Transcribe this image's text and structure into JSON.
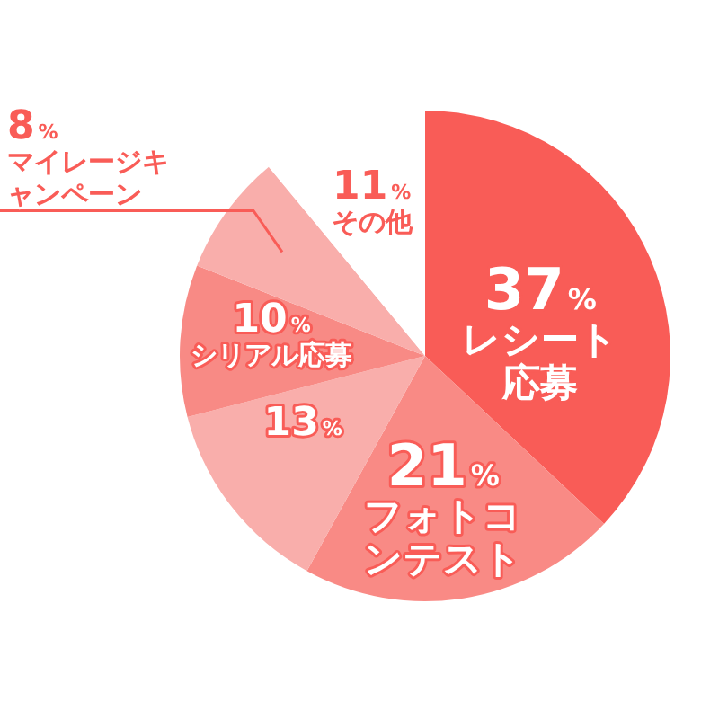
{
  "chart_data": {
    "type": "pie",
    "categories": [
      "レシート応募",
      "フォトコンテスト",
      null,
      "シリアル応募",
      "マイレージキャンペーン",
      "その他"
    ],
    "values": [
      37,
      21,
      13,
      10,
      8,
      11
    ],
    "colors": [
      "#f95c57",
      "#f98a85",
      "#f9aeab",
      "#f88a85",
      "#f9aeab",
      "#ffffff"
    ],
    "value_labels": [
      "37%",
      "21%",
      "13%",
      "10%",
      "8%",
      "11%"
    ],
    "legend": false
  }
}
